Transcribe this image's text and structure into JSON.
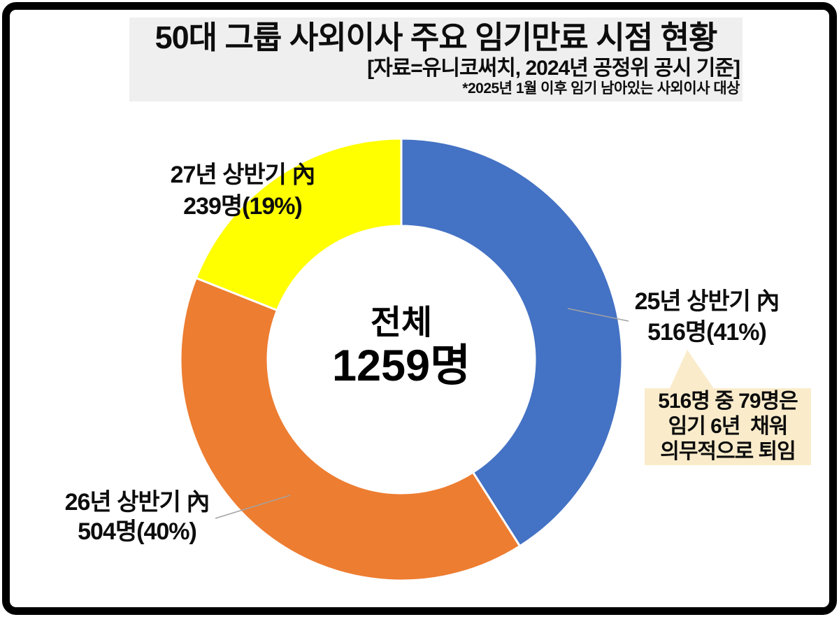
{
  "header": {
    "title": "50대 그룹 사외이사 주요 임기만료 시점 현황",
    "source": "[자료=유니코써치, 2024년 공정위 공시 기준]",
    "note": "*2025년 1월 이후 임기 남아있는 사외이사 대상",
    "bg_color": "#efefef"
  },
  "chart_data": {
    "type": "pie",
    "subtype": "donut",
    "title": "50대 그룹 사외이사 주요 임기만료 시점 현황",
    "unit": "명",
    "total_value": 1259,
    "center_label": {
      "line1": "전체",
      "line2": "1259명"
    },
    "direction": "clockwise",
    "start_angle_deg": 0,
    "inner_radius_ratio": 0.6,
    "legend_position": "none",
    "slices": [
      {
        "key": "h1-2025",
        "label_line1": "25년 상반기 內",
        "label_line2": "516명(41%)",
        "value": 516,
        "percent": 41,
        "color": "#4472c4"
      },
      {
        "key": "h1-2026",
        "label_line1": "26년 상반기 內",
        "label_line2": "504명(40%)",
        "value": 504,
        "percent": 40,
        "color": "#ed7d31"
      },
      {
        "key": "h1-2027",
        "label_line1": "27년 상반기 內",
        "label_line2": "239명(19%)",
        "value": 239,
        "percent": 19,
        "color": "#ffff00"
      }
    ]
  },
  "callout": {
    "line1": "516명 중 79명은",
    "line2": "임기 6년  채워",
    "line3": "의무적으로 퇴임",
    "bg_color": "#faeccb"
  }
}
